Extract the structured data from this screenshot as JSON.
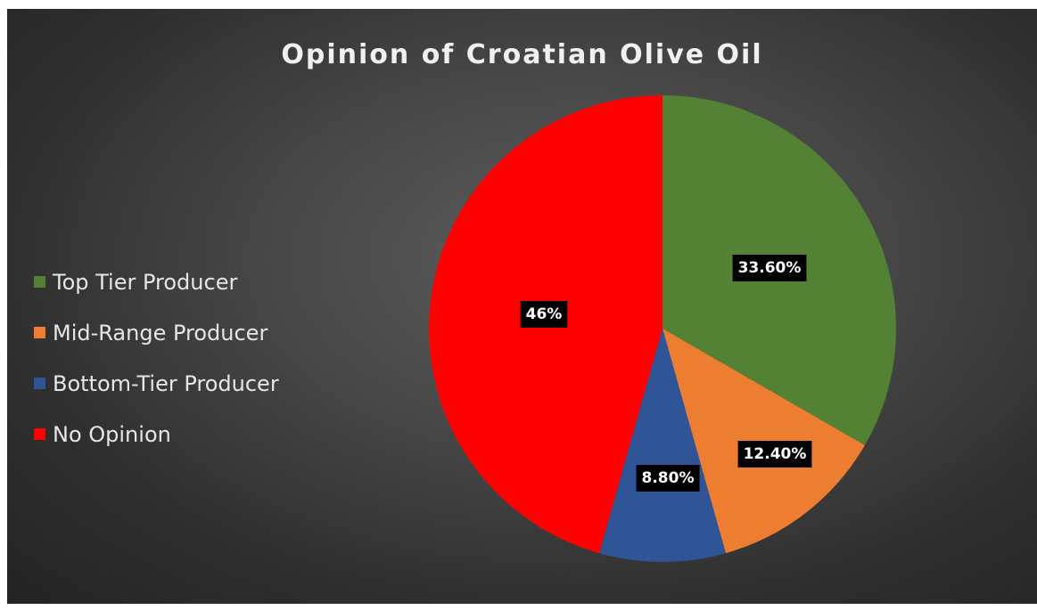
{
  "chart_data": {
    "type": "pie",
    "title": "Opinion of Croatian Olive Oil",
    "legend_position": "left",
    "slices": [
      {
        "label": "Top Tier Producer",
        "value": 33.6,
        "data_label": "33.60%",
        "color": "#548235"
      },
      {
        "label": "Mid-Range Producer",
        "value": 12.4,
        "data_label": "12.40%",
        "color": "#ED7D31"
      },
      {
        "label": "Bottom-Tier Producer",
        "value": 8.8,
        "data_label": "8.80%",
        "color": "#2F5597"
      },
      {
        "label": "No Opinion",
        "value": 46,
        "data_label": "46%",
        "color": "#FF0000"
      }
    ]
  }
}
